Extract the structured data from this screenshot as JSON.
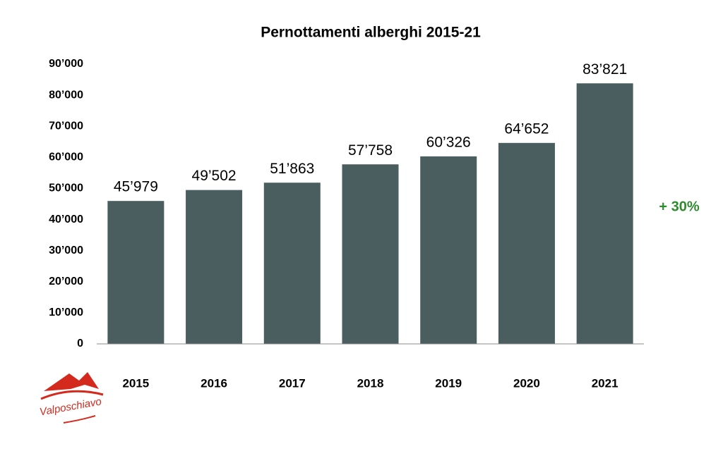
{
  "chart_data": {
    "type": "bar",
    "title": "Pernottamenti alberghi 2015-21",
    "categories": [
      "2015",
      "2016",
      "2017",
      "2018",
      "2019",
      "2020",
      "2021"
    ],
    "values": [
      45979,
      49502,
      51863,
      57758,
      60326,
      64652,
      83821
    ],
    "value_labels": [
      "45’979",
      "49’502",
      "51’863",
      "57’758",
      "60’326",
      "64’652",
      "83’821"
    ],
    "color": "#4a5e60",
    "ylim": [
      0,
      90000
    ],
    "yticks": [
      0,
      {
        "value": 10000,
        "label": "10’000"
      },
      {
        "value": 20000,
        "label": "20’000"
      },
      {
        "value": 30000,
        "label": "30’000"
      },
      {
        "value": 40000,
        "label": "40’000"
      },
      {
        "value": 50000,
        "label": "50’000"
      },
      {
        "value": 60000,
        "label": "60’000"
      },
      {
        "value": 70000,
        "label": "70’000"
      },
      {
        "value": 80000,
        "label": "80’000"
      },
      {
        "value": 90000,
        "label": "90’000"
      }
    ],
    "grid": false,
    "annotation": "+ 30%",
    "annotation_color": "#2e8b2e",
    "logo": "Valposchiavo"
  }
}
